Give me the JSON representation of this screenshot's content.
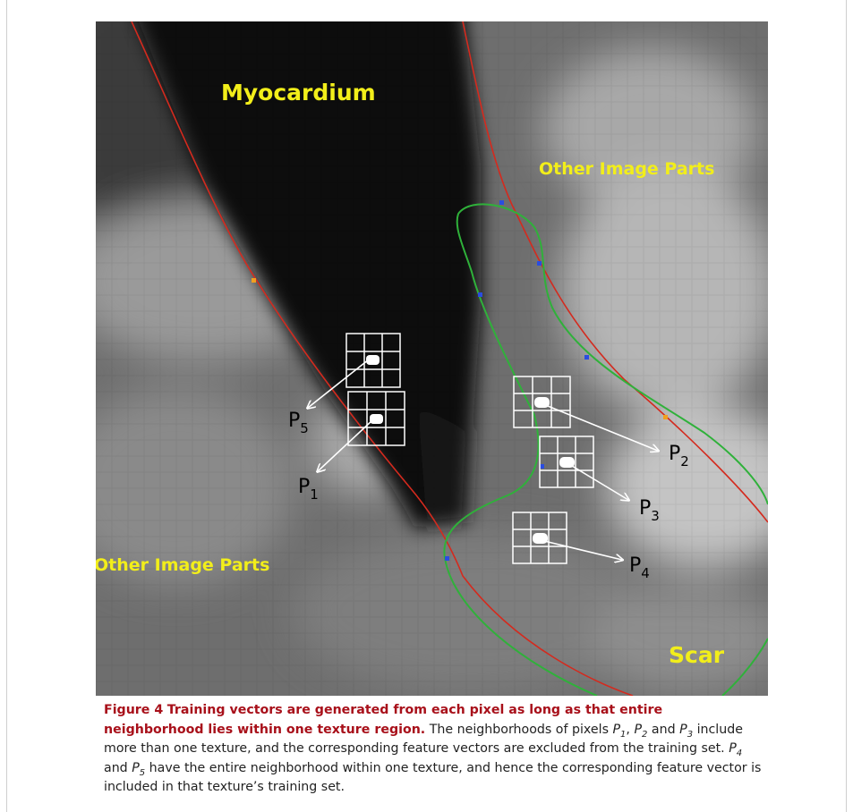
{
  "figure": {
    "labels": {
      "myocardium": "Myocardium",
      "other_top": "Other Image Parts",
      "other_left": "Other Image Parts",
      "scar": "Scar"
    },
    "points": [
      {
        "name": "P",
        "sub": "1"
      },
      {
        "name": "P",
        "sub": "2"
      },
      {
        "name": "P",
        "sub": "3"
      },
      {
        "name": "P",
        "sub": "4"
      },
      {
        "name": "P",
        "sub": "5"
      }
    ]
  },
  "caption": {
    "figure_label": "Figure 4",
    "title": "Training vectors are generated from each pixel as long as that entire neighborhood lies within one texture region.",
    "body_1": "The neighborhoods of pixels",
    "p1": "P",
    "p1_sub": "1",
    "sep_1": ",",
    "p2": "P",
    "p2_sub": "2",
    "and_1": "and",
    "p3": "P",
    "p3_sub": "3",
    "body_2": "include more than one texture, and the corresponding feature vectors are excluded from the training set.",
    "p4": "P",
    "p4_sub": "4",
    "and_2": "and",
    "p5": "P",
    "p5_sub": "5",
    "body_3": "have the entire neighborhood within one texture, and hence the corresponding feature vector is included in that texture’s training set."
  }
}
